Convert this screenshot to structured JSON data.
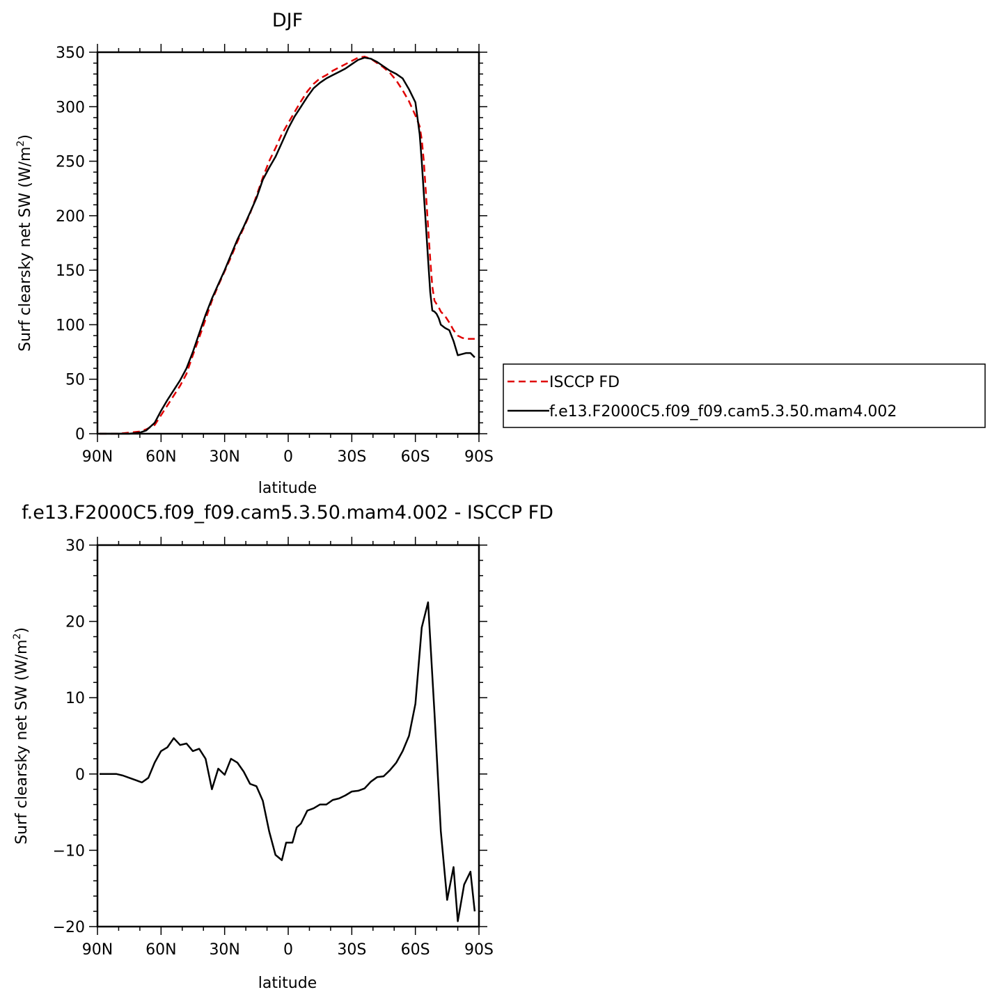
{
  "chart_data": [
    {
      "type": "line",
      "title": "DJF",
      "xlabel": "latitude",
      "ylabel_main": "Surf clearsky net SW (W/m",
      "ylabel_sup": "2",
      "ylabel_tail": ")",
      "xlim": [
        -90,
        90
      ],
      "ylim": [
        0,
        350
      ],
      "xticks": [
        {
          "value": -90,
          "label": "90N"
        },
        {
          "value": -60,
          "label": "60N"
        },
        {
          "value": -30,
          "label": "30N"
        },
        {
          "value": 0,
          "label": "0"
        },
        {
          "value": 30,
          "label": "30S"
        },
        {
          "value": 60,
          "label": "60S"
        },
        {
          "value": 90,
          "label": "90S"
        }
      ],
      "yticks": [
        {
          "value": 0,
          "label": "0"
        },
        {
          "value": 50,
          "label": "50"
        },
        {
          "value": 100,
          "label": "100"
        },
        {
          "value": 150,
          "label": "150"
        },
        {
          "value": 200,
          "label": "200"
        },
        {
          "value": 250,
          "label": "250"
        },
        {
          "value": 300,
          "label": "300"
        },
        {
          "value": 350,
          "label": "350"
        }
      ],
      "legend_position": "right",
      "series": [
        {
          "name": "ISCCP FD",
          "color": "#e00000",
          "dash": "dashed",
          "x": [
            -89,
            -80,
            -75,
            -70,
            -67,
            -63,
            -60,
            -57,
            -54,
            -51,
            -48,
            -45,
            -42,
            -39,
            -36,
            -33,
            -30,
            -27,
            -24,
            -21,
            -18,
            -15,
            -12,
            -9,
            -6,
            -3,
            0,
            3,
            6,
            9,
            12,
            15,
            18,
            21,
            24,
            27,
            30,
            33,
            36,
            39,
            42,
            45,
            48,
            51,
            54,
            57,
            60,
            62,
            63,
            64,
            65,
            66,
            67,
            68,
            69,
            70,
            71,
            72,
            74,
            76,
            78,
            80,
            82,
            84,
            86,
            88
          ],
          "y": [
            0,
            0,
            1,
            2,
            4,
            8,
            17,
            26,
            35,
            44,
            55,
            72,
            88,
            105,
            122,
            136,
            149,
            162,
            176,
            189,
            202,
            218,
            235,
            250,
            262,
            275,
            285,
            295,
            305,
            314,
            321,
            326,
            329,
            333,
            336,
            339,
            342,
            345,
            346,
            344,
            340,
            336,
            331,
            324,
            315,
            305,
            292,
            282,
            270,
            250,
            220,
            190,
            160,
            135,
            122,
            119,
            116,
            112,
            108,
            102,
            95,
            90,
            88,
            87,
            87,
            87
          ]
        },
        {
          "name": "f.e13.F2000C5.f09_f09.cam5.3.50.mam4.002",
          "color": "#000000",
          "dash": "solid",
          "x": [
            -89,
            -80,
            -75,
            -70,
            -67,
            -63,
            -60,
            -57,
            -54,
            -51,
            -48,
            -45,
            -42,
            -39,
            -36,
            -33,
            -30,
            -27,
            -24,
            -21,
            -18,
            -15,
            -12,
            -9,
            -6,
            -3,
            0,
            3,
            6,
            9,
            12,
            15,
            18,
            21,
            24,
            27,
            30,
            33,
            36,
            39,
            42,
            45,
            48,
            51,
            54,
            57,
            60,
            62,
            63,
            64,
            65,
            66,
            67,
            68,
            69,
            70,
            71,
            72,
            74,
            76,
            78,
            80,
            82,
            84,
            86,
            88
          ],
          "y": [
            0,
            0,
            0,
            1,
            3,
            10,
            21,
            31,
            40,
            49,
            60,
            75,
            92,
            109,
            124,
            137,
            150,
            164,
            178,
            190,
            203,
            216,
            233,
            244,
            254,
            267,
            280,
            291,
            300,
            309,
            317,
            322,
            326,
            329,
            332,
            335,
            339,
            343,
            345,
            344,
            341,
            337,
            333,
            330,
            326,
            316,
            304,
            275,
            250,
            220,
            190,
            160,
            130,
            113,
            112,
            110,
            106,
            100,
            97,
            95,
            85,
            72,
            73,
            74,
            74,
            70
          ]
        }
      ]
    },
    {
      "type": "line",
      "title": "f.e13.F2000C5.f09_f09.cam5.3.50.mam4.002 - ISCCP FD",
      "xlabel": "latitude",
      "ylabel_main": "Surf clearsky net SW (W/m",
      "ylabel_sup": "2",
      "ylabel_tail": ")",
      "xlim": [
        -90,
        90
      ],
      "ylim": [
        -20,
        30
      ],
      "xticks": [
        {
          "value": -90,
          "label": "90N"
        },
        {
          "value": -60,
          "label": "60N"
        },
        {
          "value": -30,
          "label": "30N"
        },
        {
          "value": 0,
          "label": "0"
        },
        {
          "value": 30,
          "label": "30S"
        },
        {
          "value": 60,
          "label": "60S"
        },
        {
          "value": 90,
          "label": "90S"
        }
      ],
      "yticks": [
        {
          "value": -20,
          "label": "−20"
        },
        {
          "value": -10,
          "label": "−10"
        },
        {
          "value": 0,
          "label": "0"
        },
        {
          "value": 10,
          "label": "10"
        },
        {
          "value": 20,
          "label": "20"
        },
        {
          "value": 30,
          "label": "30"
        }
      ],
      "series": [
        {
          "name": "",
          "color": "#000000",
          "dash": "solid",
          "x": [
            -89,
            -81,
            -78,
            -75,
            -72,
            -69,
            -66,
            -63,
            -60,
            -57,
            -54,
            -51,
            -48,
            -45,
            -42,
            -39,
            -36,
            -33,
            -30,
            -27,
            -24,
            -21,
            -18,
            -15,
            -12,
            -9,
            -6,
            -3,
            -1,
            2,
            4,
            6,
            9,
            12,
            15,
            18,
            21,
            24,
            27,
            30,
            33,
            36,
            39,
            42,
            45,
            48,
            51,
            54,
            57,
            60,
            63,
            66,
            69,
            72,
            75,
            78,
            80,
            83,
            86,
            88
          ],
          "y": [
            0,
            0,
            -0.2,
            -0.5,
            -0.8,
            -1.1,
            -0.5,
            1.5,
            3.0,
            3.5,
            4.7,
            3.8,
            4.0,
            3.0,
            3.3,
            2.0,
            -2.0,
            0.7,
            -0.1,
            2.0,
            1.5,
            0.3,
            -1.3,
            -1.6,
            -3.5,
            -7.5,
            -10.6,
            -11.3,
            -9.0,
            -9.0,
            -7.0,
            -6.5,
            -4.8,
            -4.5,
            -4.0,
            -4.0,
            -3.4,
            -3.2,
            -2.8,
            -2.3,
            -2.2,
            -1.9,
            -1.0,
            -0.4,
            -0.3,
            0.5,
            1.5,
            3.0,
            5.0,
            9.2,
            19.2,
            22.5,
            8.0,
            -7.5,
            -16.5,
            -12.2,
            -19.3,
            -14.5,
            -12.8,
            -18.0
          ]
        }
      ]
    }
  ]
}
